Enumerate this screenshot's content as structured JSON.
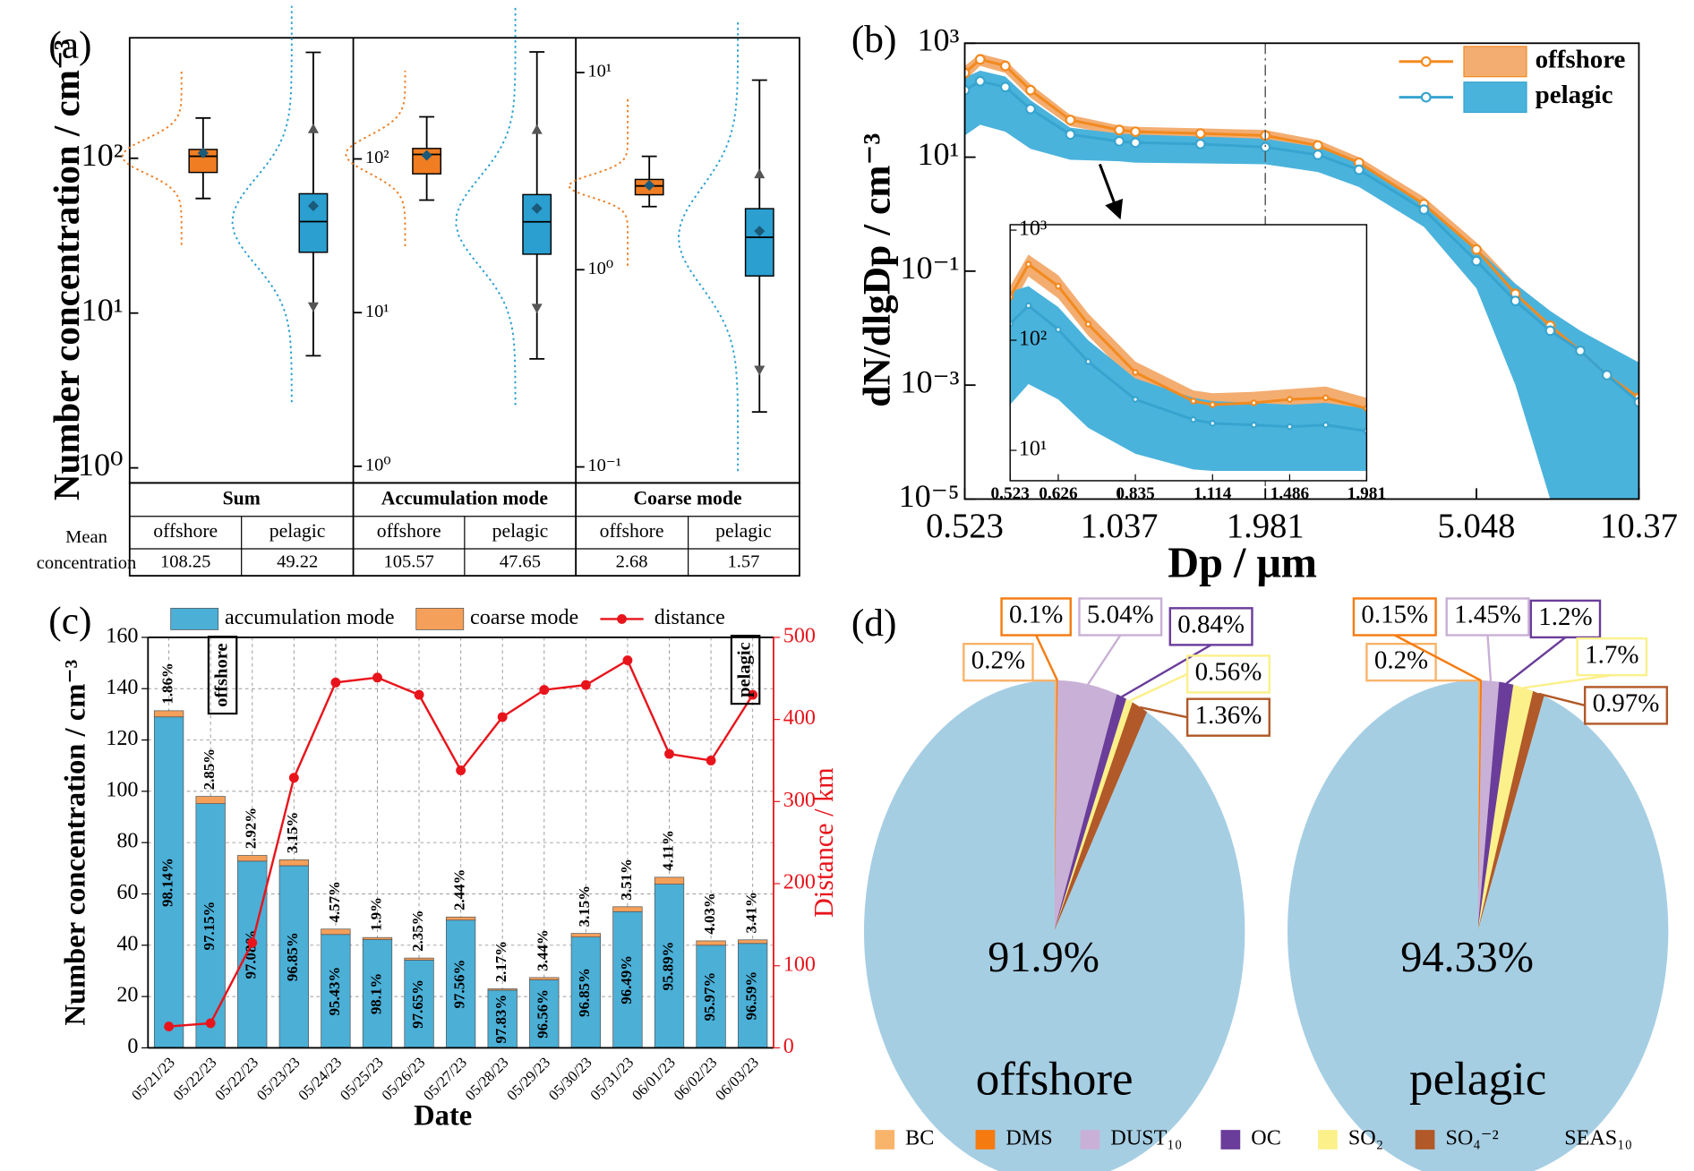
{
  "chart_data": [
    {
      "type": "box",
      "label": "(a)",
      "ylabel": "Number concentration / cm⁻³",
      "mean_label": "Mean concentration",
      "yscale": "log",
      "panels": [
        {
          "title": "Sum",
          "ylim": [
            0.8,
            600
          ],
          "yticks": [
            {
              "value": 1,
              "label": "10⁰"
            },
            {
              "value": 10,
              "label": "10¹"
            },
            {
              "value": 100,
              "label": "10²"
            }
          ],
          "series": [
            {
              "name": "offshore",
              "color": "#f07d22",
              "whisker_low": 55,
              "q1": 81,
              "median": 103,
              "q3": 114,
              "whisker_high": 182,
              "mean": 108.25
            },
            {
              "name": "pelagic",
              "color": "#2a9fd0",
              "whisker_low": 5.3,
              "p5": 11,
              "q1": 24.7,
              "median": 39,
              "q3": 59,
              "p95": 155,
              "whisker_high": 483,
              "mean": 49.22
            }
          ]
        },
        {
          "title": "Accumulation mode",
          "ylim": [
            0.78,
            614
          ],
          "yticks": [
            {
              "value": 1,
              "label": "10⁰"
            },
            {
              "value": 10,
              "label": "10¹"
            },
            {
              "value": 100,
              "label": "10²"
            }
          ],
          "series": [
            {
              "name": "offshore",
              "color": "#f07d22",
              "whisker_low": 54,
              "q1": 80,
              "median": 107,
              "q3": 117,
              "whisker_high": 188,
              "mean": 105.57
            },
            {
              "name": "pelagic",
              "color": "#2a9fd0",
              "whisker_low": 5.0,
              "p5": 10.7,
              "q1": 24,
              "median": 39,
              "q3": 58.6,
              "p95": 155,
              "whisker_high": 497,
              "mean": 47.65
            }
          ]
        },
        {
          "title": "Coarse mode",
          "ylim": [
            0.083,
            15
          ],
          "yticks": [
            {
              "value": 0.1,
              "label": "10⁻¹"
            },
            {
              "value": 1,
              "label": "10⁰"
            },
            {
              "value": 10,
              "label": "10¹"
            }
          ],
          "series": [
            {
              "name": "offshore",
              "color": "#f07d22",
              "whisker_low": 2.09,
              "q1": 2.4,
              "median": 2.66,
              "q3": 2.87,
              "whisker_high": 3.76,
              "mean": 2.68
            },
            {
              "name": "pelagic",
              "color": "#2a9fd0",
              "whisker_low": 0.19,
              "p5": 0.31,
              "q1": 0.93,
              "median": 1.46,
              "q3": 2.04,
              "p95": 3.06,
              "whisker_high": 9.15,
              "mean": 1.57
            }
          ]
        }
      ]
    },
    {
      "type": "line",
      "label": "(b)",
      "xlabel": "Dp / μm",
      "ylabel": "dN/dlgDp / cm⁻³",
      "xscale": "log",
      "yscale": "log",
      "legend": "upper right",
      "xlim": [
        0.523,
        10.37
      ],
      "ylim": [
        1e-05,
        1000
      ],
      "xticks": [
        0.523,
        1.037,
        1.981,
        5.048,
        10.37
      ],
      "yticks": [
        {
          "value": 1000,
          "label": "10³"
        },
        {
          "value": 10,
          "label": "10¹"
        },
        {
          "value": 0.1,
          "label": "10⁻¹"
        },
        {
          "value": 0.001,
          "label": "10⁻³"
        },
        {
          "value": 1e-05,
          "label": "10⁻⁵"
        }
      ],
      "vline": 1.981,
      "x": [
        0.523,
        0.56,
        0.626,
        0.7,
        0.835,
        1.037,
        1.114,
        1.486,
        1.981,
        2.5,
        3,
        4,
        5.048,
        6,
        7,
        8,
        9,
        10.37
      ],
      "series": [
        {
          "name": "offshore",
          "color": "#f28a1f",
          "band_color": "#ee8a35",
          "values": [
            300,
            520,
            400,
            150,
            45,
            30,
            28,
            26,
            24,
            16,
            8,
            1.5,
            0.24,
            0.04,
            0.011,
            0.004,
            0.0015,
            0.0006
          ],
          "upper": [
            400,
            650,
            500,
            190,
            55,
            36,
            34,
            32,
            30,
            20,
            10,
            2,
            0.32,
            0.06,
            0.02,
            0.008,
            0.004,
            0.002
          ],
          "lower": [
            220,
            400,
            300,
            110,
            35,
            24,
            22,
            20,
            19,
            12,
            6,
            1.1,
            0.15,
            0.01,
            1e-05,
            1e-05,
            1e-05,
            1e-05
          ]
        },
        {
          "name": "pelagic",
          "color": "#37a4cf",
          "band_color": "#4ab3dc",
          "values": [
            150,
            215,
            170,
            70,
            25,
            19,
            18,
            17,
            15,
            11,
            6,
            1.2,
            0.15,
            0.03,
            0.009,
            0.004,
            0.0015,
            0.0005
          ],
          "upper": [
            250,
            330,
            260,
            100,
            33,
            26,
            25,
            23,
            21,
            15,
            8,
            1.6,
            0.25,
            0.06,
            0.02,
            0.009,
            0.005,
            0.0025
          ],
          "lower": [
            24,
            37,
            28,
            14,
            9,
            8.5,
            8,
            7.8,
            7.5,
            5.5,
            3,
            0.6,
            0.05,
            0.001,
            1e-05,
            1e-05,
            1e-05,
            1e-05
          ]
        }
      ],
      "inset": {
        "xscale": "log",
        "yscale": "log",
        "xlim": [
          0.523,
          1.981
        ],
        "ylim": [
          5.3,
          1120
        ],
        "xticks": [
          0.523,
          0.626,
          0.835,
          1.114,
          1.486,
          1.981
        ],
        "yticks": [
          {
            "value": 10,
            "label": "10¹"
          },
          {
            "value": 100,
            "label": "10²"
          },
          {
            "value": 1000,
            "label": "10³"
          }
        ],
        "x": [
          0.523,
          0.56,
          0.626,
          0.7,
          0.835,
          1.037,
          1.114,
          1.3,
          1.486,
          1.7,
          1.981
        ],
        "series": [
          {
            "name": "offshore",
            "color": "#f28a1f",
            "band_color": "#ee8a35",
            "values": [
              247,
              490,
              310,
              140,
              51,
              28,
              26,
              27,
              29,
              30,
              24
            ],
            "upper": [
              310,
              600,
              390,
              175,
              64,
              35,
              33,
              34,
              36,
              38,
              30
            ],
            "lower": [
              190,
              380,
              240,
              110,
              40,
              22,
              20,
              21,
              23,
              23,
              19
            ]
          },
          {
            "name": "pelagic",
            "color": "#37a4cf",
            "band_color": "#4ab3dc",
            "values": [
              141,
              206,
              125,
              64,
              29,
              19,
              17.6,
              17,
              16.4,
              17,
              15
            ],
            "upper": [
              276,
              310,
              200,
              100,
              45,
              30,
              28,
              27,
              26,
              27,
              24
            ],
            "lower": [
              26,
              40,
              29,
              16,
              9.3,
              6.7,
              6.5,
              6.5,
              6.5,
              6.5,
              6.5
            ]
          }
        ]
      }
    },
    {
      "type": "bar-line",
      "label": "(c)",
      "xlabel": "Date",
      "ylabel": "Number concentration / cm⁻³",
      "y2label": "Distance / km",
      "grid": true,
      "categories": [
        "05/21/23",
        "05/22/23",
        "05/22/23",
        "05/23/23",
        "05/24/23",
        "05/25/23",
        "05/26/23",
        "05/27/23",
        "05/28/23",
        "05/29/23",
        "05/30/23",
        "05/31/23",
        "06/01/23",
        "06/02/23",
        "06/03/23"
      ],
      "ylim": [
        0,
        160
      ],
      "yticks": [
        0,
        20,
        40,
        60,
        80,
        100,
        120,
        140,
        160
      ],
      "y2lim": [
        0,
        500
      ],
      "y2ticks": [
        0,
        100,
        200,
        300,
        400,
        500
      ],
      "annotations": [
        "offshore",
        "pelagic"
      ],
      "series": [
        {
          "name": "accumulation mode",
          "color": "#4bafd6",
          "values": [
            129.0,
            95.2,
            72.8,
            71.0,
            44.2,
            42.2,
            34.2,
            49.8,
            22.5,
            26.5,
            43.2,
            53.1,
            63.8,
            40.0,
            40.7
          ],
          "share_labels": [
            "98.14%",
            "97.15%",
            "97.08%",
            "96.85%",
            "95.43%",
            "98.1%",
            "97.65%",
            "97.56%",
            "97.83%",
            "96.56%",
            "96.85%",
            "96.49%",
            "95.89%",
            "95.97%",
            "96.59%"
          ]
        },
        {
          "name": "coarse mode",
          "color": "#f5a05a",
          "values": [
            2.4,
            2.8,
            2.2,
            2.3,
            2.1,
            0.8,
            0.8,
            1.2,
            0.5,
            0.9,
            1.4,
            1.9,
            2.7,
            1.7,
            1.4
          ],
          "share_labels": [
            "1.86%",
            "2.85%",
            "2.92%",
            "3.15%",
            "4.57%",
            "1.9%",
            "2.35%",
            "2.44%",
            "2.17%",
            "3.44%",
            "3.15%",
            "3.51%",
            "4.11%",
            "4.03%",
            "3.41%"
          ]
        },
        {
          "name": "distance",
          "color": "#e8141b",
          "axis": "y2",
          "values": [
            26,
            30,
            128,
            329,
            445,
            451,
            430,
            338,
            403,
            436,
            442,
            472,
            358,
            350,
            430
          ]
        }
      ]
    },
    {
      "type": "pie",
      "label": "(d)",
      "categories": [
        "BC",
        "DMS",
        "DUST₁₀",
        "OC",
        "SO₂",
        "SO₄⁻²",
        "SEAS₁₀"
      ],
      "colors": [
        "#f9b46b",
        "#f57b10",
        "#c9b0d6",
        "#6a3d9a",
        "#fbf08a",
        "#b15928",
        "#a6cee3"
      ],
      "series": [
        {
          "name": "offshore",
          "values": [
            0.2,
            0.1,
            5.04,
            0.84,
            0.56,
            1.36,
            91.9
          ],
          "value_labels": [
            "0.2%",
            "0.1%",
            "5.04%",
            "0.84%",
            "0.56%",
            "1.36%",
            "91.9%"
          ]
        },
        {
          "name": "pelagic",
          "values": [
            0.2,
            0.15,
            1.45,
            1.2,
            1.7,
            0.97,
            94.33
          ],
          "value_labels": [
            "0.2%",
            "0.15%",
            "1.45%",
            "1.2%",
            "1.7%",
            "0.97%",
            "94.33%"
          ]
        }
      ]
    }
  ]
}
